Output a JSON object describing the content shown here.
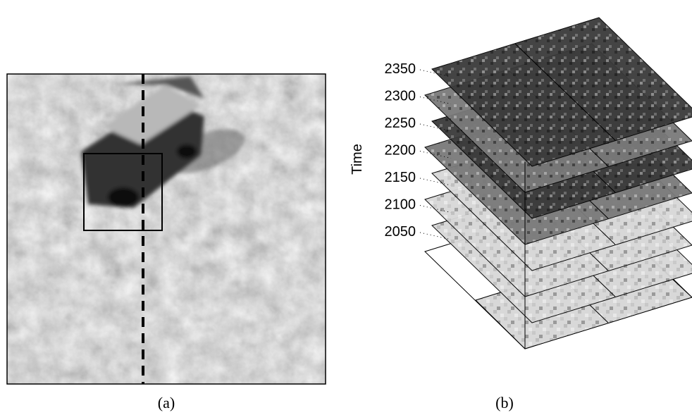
{
  "panels": [
    {
      "caption": "(a)"
    },
    {
      "caption": "(b)",
      "axis_label": "Time",
      "ticks": [
        "2350",
        "2300",
        "2250",
        "2200",
        "2150",
        "2100",
        "2050"
      ]
    }
  ]
}
